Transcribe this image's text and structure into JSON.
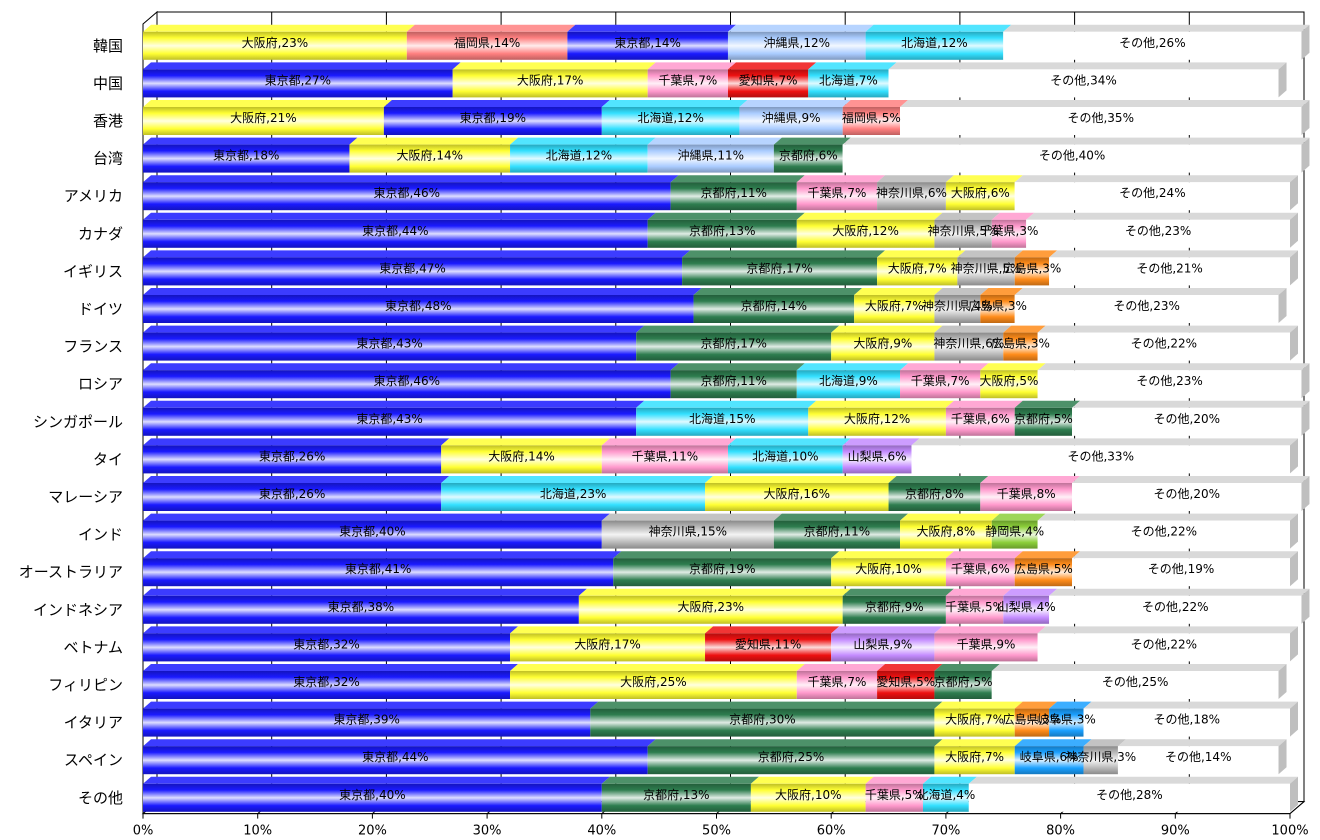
{
  "chart_data": {
    "type": "bar",
    "orientation": "horizontal",
    "stacked": "percent",
    "xlim": [
      0,
      100
    ],
    "x_ticks": [
      "0%",
      "10%",
      "20%",
      "30%",
      "40%",
      "50%",
      "60%",
      "70%",
      "80%",
      "90%",
      "100%"
    ],
    "grid": true,
    "colors": {
      "東京都": "#1a1aff",
      "大阪府": "#ffff33",
      "京都府": "#2e7d4f",
      "千葉県": "#ff99cc",
      "北海道": "#33e0ff",
      "沖縄県": "#aaccff",
      "福岡県": "#ff8080",
      "愛知県": "#ee1111",
      "神奈川県": "#b8b8b8",
      "広島県": "#ff8c1a",
      "山梨県": "#c48cff",
      "静岡県": "#8ccf3a",
      "岐阜県": "#1aa0ff",
      "その他": "#ffffff"
    },
    "rows": [
      {
        "category": "韓国",
        "segments": [
          {
            "label": "大阪府,23%",
            "value": 23
          },
          {
            "label": "福岡県,14%",
            "value": 14
          },
          {
            "label": "東京都,14%",
            "value": 14
          },
          {
            "label": "沖縄県,12%",
            "value": 12
          },
          {
            "label": "北海道,12%",
            "value": 12
          },
          {
            "label": "その他,26%",
            "value": 26
          }
        ]
      },
      {
        "category": "中国",
        "segments": [
          {
            "label": "東京都,27%",
            "value": 27
          },
          {
            "label": "大阪府,17%",
            "value": 17
          },
          {
            "label": "千葉県,7%",
            "value": 7
          },
          {
            "label": "愛知県,7%",
            "value": 7
          },
          {
            "label": "北海道,7%",
            "value": 7
          },
          {
            "label": "その他,34%",
            "value": 34
          }
        ]
      },
      {
        "category": "香港",
        "segments": [
          {
            "label": "大阪府,21%",
            "value": 21
          },
          {
            "label": "東京都,19%",
            "value": 19
          },
          {
            "label": "北海道,12%",
            "value": 12
          },
          {
            "label": "沖縄県,9%",
            "value": 9
          },
          {
            "label": "福岡県,5%",
            "value": 5
          },
          {
            "label": "その他,35%",
            "value": 35
          }
        ]
      },
      {
        "category": "台湾",
        "segments": [
          {
            "label": "東京都,18%",
            "value": 18
          },
          {
            "label": "大阪府,14%",
            "value": 14
          },
          {
            "label": "北海道,12%",
            "value": 12
          },
          {
            "label": "沖縄県,11%",
            "value": 11
          },
          {
            "label": "京都府,6%",
            "value": 6
          },
          {
            "label": "その他,40%",
            "value": 40
          }
        ]
      },
      {
        "category": "アメリカ",
        "segments": [
          {
            "label": "東京都,46%",
            "value": 46
          },
          {
            "label": "京都府,11%",
            "value": 11
          },
          {
            "label": "千葉県,7%",
            "value": 7
          },
          {
            "label": "神奈川県,6%",
            "value": 6
          },
          {
            "label": "大阪府,6%",
            "value": 6
          },
          {
            "label": "その他,24%",
            "value": 24
          }
        ]
      },
      {
        "category": "カナダ",
        "segments": [
          {
            "label": "東京都,44%",
            "value": 44
          },
          {
            "label": "京都府,13%",
            "value": 13
          },
          {
            "label": "大阪府,12%",
            "value": 12
          },
          {
            "label": "神奈川県,5%",
            "value": 5
          },
          {
            "label": "千葉県,3%",
            "value": 3
          },
          {
            "label": "その他,23%",
            "value": 23
          }
        ]
      },
      {
        "category": "イギリス",
        "segments": [
          {
            "label": "東京都,47%",
            "value": 47
          },
          {
            "label": "京都府,17%",
            "value": 17
          },
          {
            "label": "大阪府,7%",
            "value": 7
          },
          {
            "label": "神奈川県,5%",
            "value": 5
          },
          {
            "label": "広島県,3%",
            "value": 3
          },
          {
            "label": "その他,21%",
            "value": 21
          }
        ]
      },
      {
        "category": "ドイツ",
        "segments": [
          {
            "label": "東京都,48%",
            "value": 48
          },
          {
            "label": "京都府,14%",
            "value": 14
          },
          {
            "label": "大阪府,7%",
            "value": 7
          },
          {
            "label": "神奈川県,4%",
            "value": 4
          },
          {
            "label": "広島県,3%",
            "value": 3
          },
          {
            "label": "その他,23%",
            "value": 23
          }
        ]
      },
      {
        "category": "フランス",
        "segments": [
          {
            "label": "東京都,43%",
            "value": 43
          },
          {
            "label": "京都府,17%",
            "value": 17
          },
          {
            "label": "大阪府,9%",
            "value": 9
          },
          {
            "label": "神奈川県,6%",
            "value": 6
          },
          {
            "label": "広島県,3%",
            "value": 3
          },
          {
            "label": "その他,22%",
            "value": 22
          }
        ]
      },
      {
        "category": "ロシア",
        "segments": [
          {
            "label": "東京都,46%",
            "value": 46
          },
          {
            "label": "京都府,11%",
            "value": 11
          },
          {
            "label": "北海道,9%",
            "value": 9
          },
          {
            "label": "千葉県,7%",
            "value": 7
          },
          {
            "label": "大阪府,5%",
            "value": 5
          },
          {
            "label": "その他,23%",
            "value": 23
          }
        ]
      },
      {
        "category": "シンガポール",
        "segments": [
          {
            "label": "東京都,43%",
            "value": 43
          },
          {
            "label": "北海道,15%",
            "value": 15
          },
          {
            "label": "大阪府,12%",
            "value": 12
          },
          {
            "label": "千葉県,6%",
            "value": 6
          },
          {
            "label": "京都府,5%",
            "value": 5
          },
          {
            "label": "その他,20%",
            "value": 20
          }
        ]
      },
      {
        "category": "タイ",
        "segments": [
          {
            "label": "東京都,26%",
            "value": 26
          },
          {
            "label": "大阪府,14%",
            "value": 14
          },
          {
            "label": "千葉県,11%",
            "value": 11
          },
          {
            "label": "北海道,10%",
            "value": 10
          },
          {
            "label": "山梨県,6%",
            "value": 6
          },
          {
            "label": "その他,33%",
            "value": 33
          }
        ]
      },
      {
        "category": "マレーシア",
        "segments": [
          {
            "label": "東京都,26%",
            "value": 26
          },
          {
            "label": "北海道,23%",
            "value": 23
          },
          {
            "label": "大阪府,16%",
            "value": 16
          },
          {
            "label": "京都府,8%",
            "value": 8
          },
          {
            "label": "千葉県,8%",
            "value": 8
          },
          {
            "label": "その他,20%",
            "value": 20
          }
        ]
      },
      {
        "category": "インド",
        "segments": [
          {
            "label": "東京都,40%",
            "value": 40
          },
          {
            "label": "神奈川県,15%",
            "value": 15
          },
          {
            "label": "京都府,11%",
            "value": 11
          },
          {
            "label": "大阪府,8%",
            "value": 8
          },
          {
            "label": "静岡県,4%",
            "value": 4
          },
          {
            "label": "その他,22%",
            "value": 22
          }
        ]
      },
      {
        "category": "オーストラリア",
        "segments": [
          {
            "label": "東京都,41%",
            "value": 41
          },
          {
            "label": "京都府,19%",
            "value": 19
          },
          {
            "label": "大阪府,10%",
            "value": 10
          },
          {
            "label": "千葉県,6%",
            "value": 6
          },
          {
            "label": "広島県,5%",
            "value": 5
          },
          {
            "label": "その他,19%",
            "value": 19
          }
        ]
      },
      {
        "category": "インドネシア",
        "segments": [
          {
            "label": "東京都,38%",
            "value": 38
          },
          {
            "label": "大阪府,23%",
            "value": 23
          },
          {
            "label": "京都府,9%",
            "value": 9
          },
          {
            "label": "千葉県,5%",
            "value": 5
          },
          {
            "label": "山梨県,4%",
            "value": 4
          },
          {
            "label": "その他,22%",
            "value": 22
          }
        ]
      },
      {
        "category": "ベトナム",
        "segments": [
          {
            "label": "東京都,32%",
            "value": 32
          },
          {
            "label": "大阪府,17%",
            "value": 17
          },
          {
            "label": "愛知県,11%",
            "value": 11
          },
          {
            "label": "山梨県,9%",
            "value": 9
          },
          {
            "label": "千葉県,9%",
            "value": 9
          },
          {
            "label": "その他,22%",
            "value": 22
          }
        ]
      },
      {
        "category": "フィリピン",
        "segments": [
          {
            "label": "東京都,32%",
            "value": 32
          },
          {
            "label": "大阪府,25%",
            "value": 25
          },
          {
            "label": "千葉県,7%",
            "value": 7
          },
          {
            "label": "愛知県,5%",
            "value": 5
          },
          {
            "label": "京都府,5%",
            "value": 5
          },
          {
            "label": "その他,25%",
            "value": 25
          }
        ]
      },
      {
        "category": "イタリア",
        "segments": [
          {
            "label": "東京都,39%",
            "value": 39
          },
          {
            "label": "京都府,30%",
            "value": 30
          },
          {
            "label": "大阪府,7%",
            "value": 7
          },
          {
            "label": "広島県,3%",
            "value": 3
          },
          {
            "label": "岐阜県,3%",
            "value": 3
          },
          {
            "label": "その他,18%",
            "value": 18
          }
        ]
      },
      {
        "category": "スペイン",
        "segments": [
          {
            "label": "東京都,44%",
            "value": 44
          },
          {
            "label": "京都府,25%",
            "value": 25
          },
          {
            "label": "大阪府,7%",
            "value": 7
          },
          {
            "label": "岐阜県,6%",
            "value": 6
          },
          {
            "label": "神奈川県,3%",
            "value": 3
          },
          {
            "label": "その他,14%",
            "value": 14
          }
        ]
      },
      {
        "category": "その他",
        "segments": [
          {
            "label": "東京都,40%",
            "value": 40
          },
          {
            "label": "京都府,13%",
            "value": 13
          },
          {
            "label": "大阪府,10%",
            "value": 10
          },
          {
            "label": "千葉県,5%",
            "value": 5
          },
          {
            "label": "北海道,4%",
            "value": 4
          },
          {
            "label": "その他,28%",
            "value": 28
          }
        ]
      }
    ]
  }
}
